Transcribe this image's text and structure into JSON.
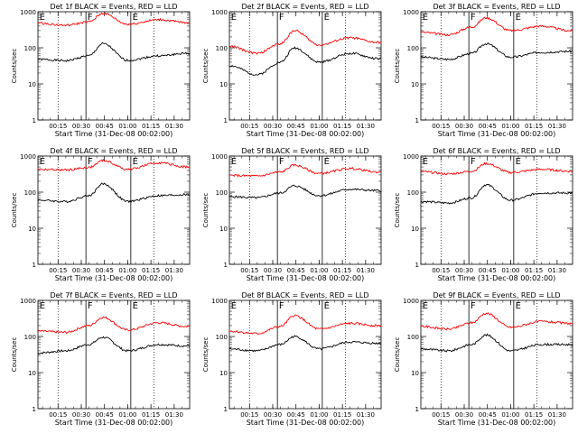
{
  "chart_data": [
    {
      "type": "line",
      "title": "Det 1f BLACK = Events, RED = LLD",
      "xlabel": "Start Time (31-Dec-08 00:02:00)",
      "ylabel": "Counts/sec",
      "ylim": [
        1,
        1000
      ],
      "y_scale": "log",
      "x_ticks": [
        "00:15",
        "00:30",
        "00:45",
        "01:00",
        "01:15",
        "01:30"
      ],
      "y_ticks": [
        "1",
        "10",
        "100",
        "1000"
      ],
      "region_labels": [
        "E",
        "F",
        "E"
      ],
      "series": [
        {
          "name": "Events",
          "color": "#000000",
          "x": [
            "00:02",
            "00:20",
            "00:35",
            "00:44",
            "01:00",
            "01:20",
            "01:38"
          ],
          "values": [
            48,
            44,
            60,
            130,
            45,
            60,
            70
          ]
        },
        {
          "name": "LLD",
          "color": "#ff0000",
          "x": [
            "00:02",
            "00:20",
            "00:35",
            "00:44",
            "01:00",
            "01:20",
            "01:38"
          ],
          "values": [
            480,
            420,
            520,
            900,
            450,
            600,
            500
          ]
        }
      ]
    },
    {
      "type": "line",
      "title": "Det 2f BLACK = Events, RED = LLD",
      "xlabel": "Start Time (31-Dec-08 00:02:00)",
      "ylabel": "Counts/sec",
      "ylim": [
        1,
        1000
      ],
      "y_scale": "log",
      "x_ticks": [
        "00:15",
        "00:30",
        "00:45",
        "01:00",
        "01:15",
        "01:30"
      ],
      "y_ticks": [
        "1",
        "10",
        "100",
        "1000"
      ],
      "region_labels": [
        "E",
        "F",
        "E"
      ],
      "series": [
        {
          "name": "Events",
          "color": "#000000",
          "x": [
            "00:02",
            "00:20",
            "00:35",
            "00:44",
            "01:00",
            "01:20",
            "01:38"
          ],
          "values": [
            32,
            18,
            40,
            100,
            40,
            70,
            50
          ]
        },
        {
          "name": "LLD",
          "color": "#ff0000",
          "x": [
            "00:02",
            "00:20",
            "00:35",
            "00:44",
            "01:00",
            "01:20",
            "01:38"
          ],
          "values": [
            110,
            70,
            130,
            300,
            120,
            190,
            140
          ]
        }
      ]
    },
    {
      "type": "line",
      "title": "Det 3f BLACK = Events, RED = LLD",
      "xlabel": "Start Time (31-Dec-08 00:02:00)",
      "ylabel": "Counts/sec",
      "ylim": [
        1,
        1000
      ],
      "y_scale": "log",
      "x_ticks": [
        "00:15",
        "00:30",
        "00:45",
        "01:00",
        "01:15",
        "01:30"
      ],
      "y_ticks": [
        "1",
        "10",
        "100",
        "1000"
      ],
      "region_labels": [
        "E",
        "F",
        "E"
      ],
      "series": [
        {
          "name": "Events",
          "color": "#000000",
          "x": [
            "00:02",
            "00:20",
            "00:35",
            "00:44",
            "01:00",
            "01:20",
            "01:38"
          ],
          "values": [
            55,
            48,
            70,
            130,
            55,
            75,
            80
          ]
        },
        {
          "name": "LLD",
          "color": "#ff0000",
          "x": [
            "00:02",
            "00:20",
            "00:35",
            "00:44",
            "01:00",
            "01:20",
            "01:38"
          ],
          "values": [
            270,
            230,
            380,
            680,
            300,
            400,
            300
          ]
        }
      ]
    },
    {
      "type": "line",
      "title": "Det 4f BLACK = Events, RED = LLD",
      "xlabel": "Start Time (31-Dec-08 00:02:00)",
      "ylabel": "Counts/sec",
      "ylim": [
        1,
        1000
      ],
      "y_scale": "log",
      "x_ticks": [
        "00:15",
        "00:30",
        "00:45",
        "01:00",
        "01:15",
        "01:30"
      ],
      "y_ticks": [
        "1",
        "10",
        "100",
        "1000"
      ],
      "region_labels": [
        "E",
        "F",
        "E"
      ],
      "series": [
        {
          "name": "Events",
          "color": "#000000",
          "x": [
            "00:02",
            "00:20",
            "00:35",
            "00:44",
            "01:00",
            "01:20",
            "01:38"
          ],
          "values": [
            60,
            55,
            80,
            170,
            55,
            80,
            85
          ]
        },
        {
          "name": "LLD",
          "color": "#ff0000",
          "x": [
            "00:02",
            "00:20",
            "00:35",
            "00:44",
            "01:00",
            "01:20",
            "01:38"
          ],
          "values": [
            430,
            410,
            480,
            750,
            430,
            650,
            500
          ]
        }
      ]
    },
    {
      "type": "line",
      "title": "Det 5f BLACK = Events, RED = LLD",
      "xlabel": "Start Time (31-Dec-08 00:02:00)",
      "ylabel": "Counts/sec",
      "ylim": [
        1,
        1000
      ],
      "y_scale": "log",
      "x_ticks": [
        "00:15",
        "00:30",
        "00:45",
        "01:00",
        "01:15",
        "01:30"
      ],
      "y_ticks": [
        "1",
        "10",
        "100",
        "1000"
      ],
      "region_labels": [
        "E",
        "F",
        "E"
      ],
      "series": [
        {
          "name": "Events",
          "color": "#000000",
          "x": [
            "00:02",
            "00:20",
            "00:35",
            "00:44",
            "01:00",
            "01:20",
            "01:38"
          ],
          "values": [
            75,
            70,
            95,
            150,
            80,
            120,
            110
          ]
        },
        {
          "name": "LLD",
          "color": "#ff0000",
          "x": [
            "00:02",
            "00:20",
            "00:35",
            "00:44",
            "01:00",
            "01:20",
            "01:38"
          ],
          "values": [
            290,
            280,
            360,
            560,
            330,
            450,
            360
          ]
        }
      ]
    },
    {
      "type": "line",
      "title": "Det 6f BLACK = Events, RED = LLD",
      "xlabel": "Start Time (31-Dec-08 00:02:00)",
      "ylabel": "Counts/sec",
      "ylim": [
        1,
        1000
      ],
      "y_scale": "log",
      "x_ticks": [
        "00:15",
        "00:30",
        "00:45",
        "01:00",
        "01:15",
        "01:30"
      ],
      "y_ticks": [
        "1",
        "10",
        "100",
        "1000"
      ],
      "region_labels": [
        "E",
        "F",
        "E"
      ],
      "series": [
        {
          "name": "Events",
          "color": "#000000",
          "x": [
            "00:02",
            "00:20",
            "00:35",
            "00:44",
            "01:00",
            "01:20",
            "01:38"
          ],
          "values": [
            55,
            50,
            70,
            160,
            60,
            95,
            95
          ]
        },
        {
          "name": "LLD",
          "color": "#ff0000",
          "x": [
            "00:02",
            "00:20",
            "00:35",
            "00:44",
            "01:00",
            "01:20",
            "01:38"
          ],
          "values": [
            370,
            320,
            380,
            620,
            350,
            430,
            380
          ]
        }
      ]
    },
    {
      "type": "line",
      "title": "Det 7f BLACK = Events, RED = LLD",
      "xlabel": "Start Time (31-Dec-08 00:02:00)",
      "ylabel": "Counts/sec",
      "ylim": [
        1,
        1000
      ],
      "y_scale": "log",
      "x_ticks": [
        "00:15",
        "00:30",
        "00:45",
        "01:00",
        "01:15",
        "01:30"
      ],
      "y_ticks": [
        "1",
        "10",
        "100",
        "1000"
      ],
      "region_labels": [
        "E",
        "F",
        "E"
      ],
      "series": [
        {
          "name": "Events",
          "color": "#000000",
          "x": [
            "00:02",
            "00:20",
            "00:35",
            "00:44",
            "01:00",
            "01:20",
            "01:38"
          ],
          "values": [
            35,
            40,
            60,
            95,
            40,
            60,
            55
          ]
        },
        {
          "name": "LLD",
          "color": "#ff0000",
          "x": [
            "00:02",
            "00:20",
            "00:35",
            "00:44",
            "01:00",
            "01:20",
            "01:38"
          ],
          "values": [
            140,
            130,
            200,
            340,
            150,
            240,
            190
          ]
        }
      ]
    },
    {
      "type": "line",
      "title": "Det 8f BLACK = Events, RED = LLD",
      "xlabel": "Start Time (31-Dec-08 00:02:00)",
      "ylabel": "Counts/sec",
      "ylim": [
        1,
        1000
      ],
      "y_scale": "log",
      "x_ticks": [
        "00:15",
        "00:30",
        "00:45",
        "01:00",
        "01:15",
        "01:30"
      ],
      "y_ticks": [
        "1",
        "10",
        "100",
        "1000"
      ],
      "region_labels": [
        "E",
        "F",
        "E"
      ],
      "series": [
        {
          "name": "Events",
          "color": "#000000",
          "x": [
            "00:02",
            "00:20",
            "00:35",
            "00:44",
            "01:00",
            "01:20",
            "01:38"
          ],
          "values": [
            45,
            40,
            60,
            100,
            45,
            70,
            65
          ]
        },
        {
          "name": "LLD",
          "color": "#ff0000",
          "x": [
            "00:02",
            "00:20",
            "00:35",
            "00:44",
            "01:00",
            "01:20",
            "01:38"
          ],
          "values": [
            140,
            120,
            190,
            380,
            160,
            230,
            200
          ]
        }
      ]
    },
    {
      "type": "line",
      "title": "Det 9f BLACK = Events, RED = LLD",
      "xlabel": "Start Time (31-Dec-08 00:02:00)",
      "ylabel": "Counts/sec",
      "ylim": [
        1,
        1000
      ],
      "y_scale": "log",
      "x_ticks": [
        "00:15",
        "00:30",
        "00:45",
        "01:00",
        "01:15",
        "01:30"
      ],
      "y_ticks": [
        "1",
        "10",
        "100",
        "1000"
      ],
      "region_labels": [
        "E",
        "F",
        "E"
      ],
      "series": [
        {
          "name": "Events",
          "color": "#000000",
          "x": [
            "00:02",
            "00:20",
            "00:35",
            "00:44",
            "01:00",
            "01:20",
            "01:38"
          ],
          "values": [
            45,
            40,
            60,
            110,
            40,
            60,
            60
          ]
        },
        {
          "name": "LLD",
          "color": "#ff0000",
          "x": [
            "00:02",
            "00:20",
            "00:35",
            "00:44",
            "01:00",
            "01:20",
            "01:38"
          ],
          "values": [
            190,
            160,
            240,
            440,
            180,
            260,
            230
          ]
        }
      ]
    }
  ]
}
